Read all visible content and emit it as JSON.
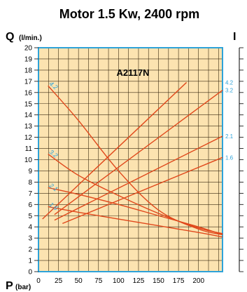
{
  "chart_data": {
    "type": "line",
    "title": "Motor 1.5 Kw, 2400 rpm",
    "model": "A2117N",
    "ylabel": "Q",
    "ylabel_unit": "(l/min.)",
    "xlabel": "P",
    "xlabel_unit": "(bar)",
    "right_axis_label": "I",
    "ylim": [
      0,
      20
    ],
    "xlim": [
      0,
      230
    ],
    "y_ticks": [
      "0",
      "1",
      "2",
      "3",
      "4",
      "5",
      "6",
      "7",
      "8",
      "9",
      "10",
      "11",
      "12",
      "13",
      "14",
      "15",
      "16",
      "17",
      "18",
      "19",
      "20"
    ],
    "x_ticks": [
      "0",
      "25",
      "50",
      "75",
      "100",
      "125",
      "150",
      "175",
      "200"
    ],
    "grid": true,
    "colors": {
      "background": "#fce3b0",
      "grid": "#3a2a10",
      "frame": "#2ea3d9",
      "curve": "#e0481b",
      "label": "#2ea3d9"
    },
    "flow_curves": [
      {
        "name": "4.2",
        "points": [
          [
            12,
            16.6
          ],
          [
            50,
            13.5
          ],
          [
            100,
            9.0
          ],
          [
            150,
            5.5
          ],
          [
            200,
            3.8
          ],
          [
            230,
            3.3
          ]
        ]
      },
      {
        "name": "3.2",
        "points": [
          [
            12,
            10.5
          ],
          [
            50,
            8.6
          ],
          [
            100,
            6.8
          ],
          [
            150,
            5.2
          ],
          [
            200,
            3.9
          ],
          [
            230,
            3.4
          ]
        ]
      },
      {
        "name": "2.1",
        "points": [
          [
            12,
            7.5
          ],
          [
            50,
            6.9
          ],
          [
            100,
            6.0
          ],
          [
            150,
            5.0
          ],
          [
            200,
            4.0
          ],
          [
            230,
            3.3
          ]
        ]
      },
      {
        "name": "1.6",
        "points": [
          [
            12,
            5.8
          ],
          [
            50,
            5.3
          ],
          [
            100,
            4.7
          ],
          [
            150,
            4.1
          ],
          [
            200,
            3.5
          ],
          [
            230,
            3.1
          ]
        ]
      }
    ],
    "current_curves": [
      {
        "name": "4.2",
        "points": [
          [
            5,
            4.7
          ],
          [
            185,
            16.9
          ]
        ]
      },
      {
        "name": "3.2",
        "points": [
          [
            20,
            5.1
          ],
          [
            230,
            16.2
          ]
        ]
      },
      {
        "name": "2.1",
        "points": [
          [
            20,
            4.6
          ],
          [
            230,
            12.1
          ]
        ]
      },
      {
        "name": "1.6",
        "points": [
          [
            30,
            4.3
          ],
          [
            230,
            10.2
          ]
        ]
      }
    ]
  }
}
